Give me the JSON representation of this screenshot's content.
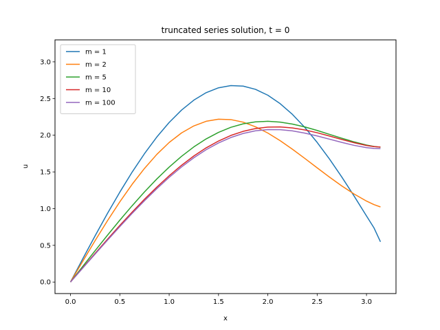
{
  "chart_data": {
    "type": "line",
    "title": "truncated series solution, t = 0",
    "xlabel": "x",
    "ylabel": "u",
    "xlim": [
      -0.157,
      3.299
    ],
    "ylim": [
      -0.157,
      3.299
    ],
    "xticks": [
      0.0,
      0.5,
      1.0,
      1.5,
      2.0,
      2.5,
      3.0
    ],
    "yticks": [
      0.0,
      0.5,
      1.0,
      1.5,
      2.0,
      2.5,
      3.0
    ],
    "xtick_labels": [
      "0.0",
      "0.5",
      "1.0",
      "1.5",
      "2.0",
      "2.5",
      "3.0"
    ],
    "ytick_labels": [
      "0.0",
      "0.5",
      "1.0",
      "1.5",
      "2.0",
      "2.5",
      "3.0"
    ],
    "grid": false,
    "legend_position": "upper-left",
    "x": [
      0.0,
      0.125,
      0.25,
      0.375,
      0.5,
      0.625,
      0.75,
      0.875,
      1.0,
      1.125,
      1.25,
      1.375,
      1.5,
      1.625,
      1.75,
      1.875,
      2.0,
      2.125,
      2.25,
      2.375,
      2.5,
      2.625,
      2.75,
      2.875,
      3.0,
      3.075,
      3.1416
    ],
    "series": [
      {
        "name": "m = 1",
        "color": "#1f77b4",
        "values": [
          0.0,
          0.318,
          0.631,
          0.935,
          1.225,
          1.498,
          1.749,
          1.976,
          2.174,
          2.342,
          2.478,
          2.58,
          2.646,
          2.676,
          2.669,
          2.625,
          2.545,
          2.43,
          2.283,
          2.106,
          1.902,
          1.676,
          1.43,
          1.17,
          0.9,
          0.74,
          0.548
        ]
      },
      {
        "name": "m = 2",
        "color": "#ff7f0e",
        "values": [
          0.0,
          0.285,
          0.565,
          0.836,
          1.093,
          1.332,
          1.548,
          1.739,
          1.901,
          2.031,
          2.127,
          2.19,
          2.218,
          2.213,
          2.178,
          2.115,
          2.03,
          1.926,
          1.809,
          1.684,
          1.556,
          1.429,
          1.309,
          1.199,
          1.103,
          1.055,
          1.023
        ]
      },
      {
        "name": "m = 5",
        "color": "#2ca02c",
        "values": [
          0.0,
          0.215,
          0.428,
          0.638,
          0.843,
          1.04,
          1.228,
          1.404,
          1.566,
          1.712,
          1.841,
          1.95,
          2.039,
          2.108,
          2.155,
          2.182,
          2.19,
          2.179,
          2.152,
          2.113,
          2.065,
          2.012,
          1.959,
          1.909,
          1.866,
          1.847,
          1.837
        ]
      },
      {
        "name": "m = 10",
        "color": "#d62728",
        "values": [
          0.0,
          0.196,
          0.391,
          0.583,
          0.771,
          0.953,
          1.128,
          1.293,
          1.448,
          1.59,
          1.717,
          1.828,
          1.921,
          1.997,
          2.053,
          2.091,
          2.111,
          2.113,
          2.099,
          2.072,
          2.034,
          1.989,
          1.942,
          1.898,
          1.86,
          1.845,
          1.839
        ]
      },
      {
        "name": "m = 100",
        "color": "#9467bd",
        "values": [
          0.0,
          0.191,
          0.382,
          0.57,
          0.755,
          0.935,
          1.108,
          1.272,
          1.426,
          1.567,
          1.693,
          1.803,
          1.895,
          1.969,
          2.024,
          2.06,
          2.077,
          2.076,
          2.059,
          2.029,
          1.99,
          1.946,
          1.902,
          1.862,
          1.831,
          1.82,
          1.817
        ]
      }
    ]
  }
}
